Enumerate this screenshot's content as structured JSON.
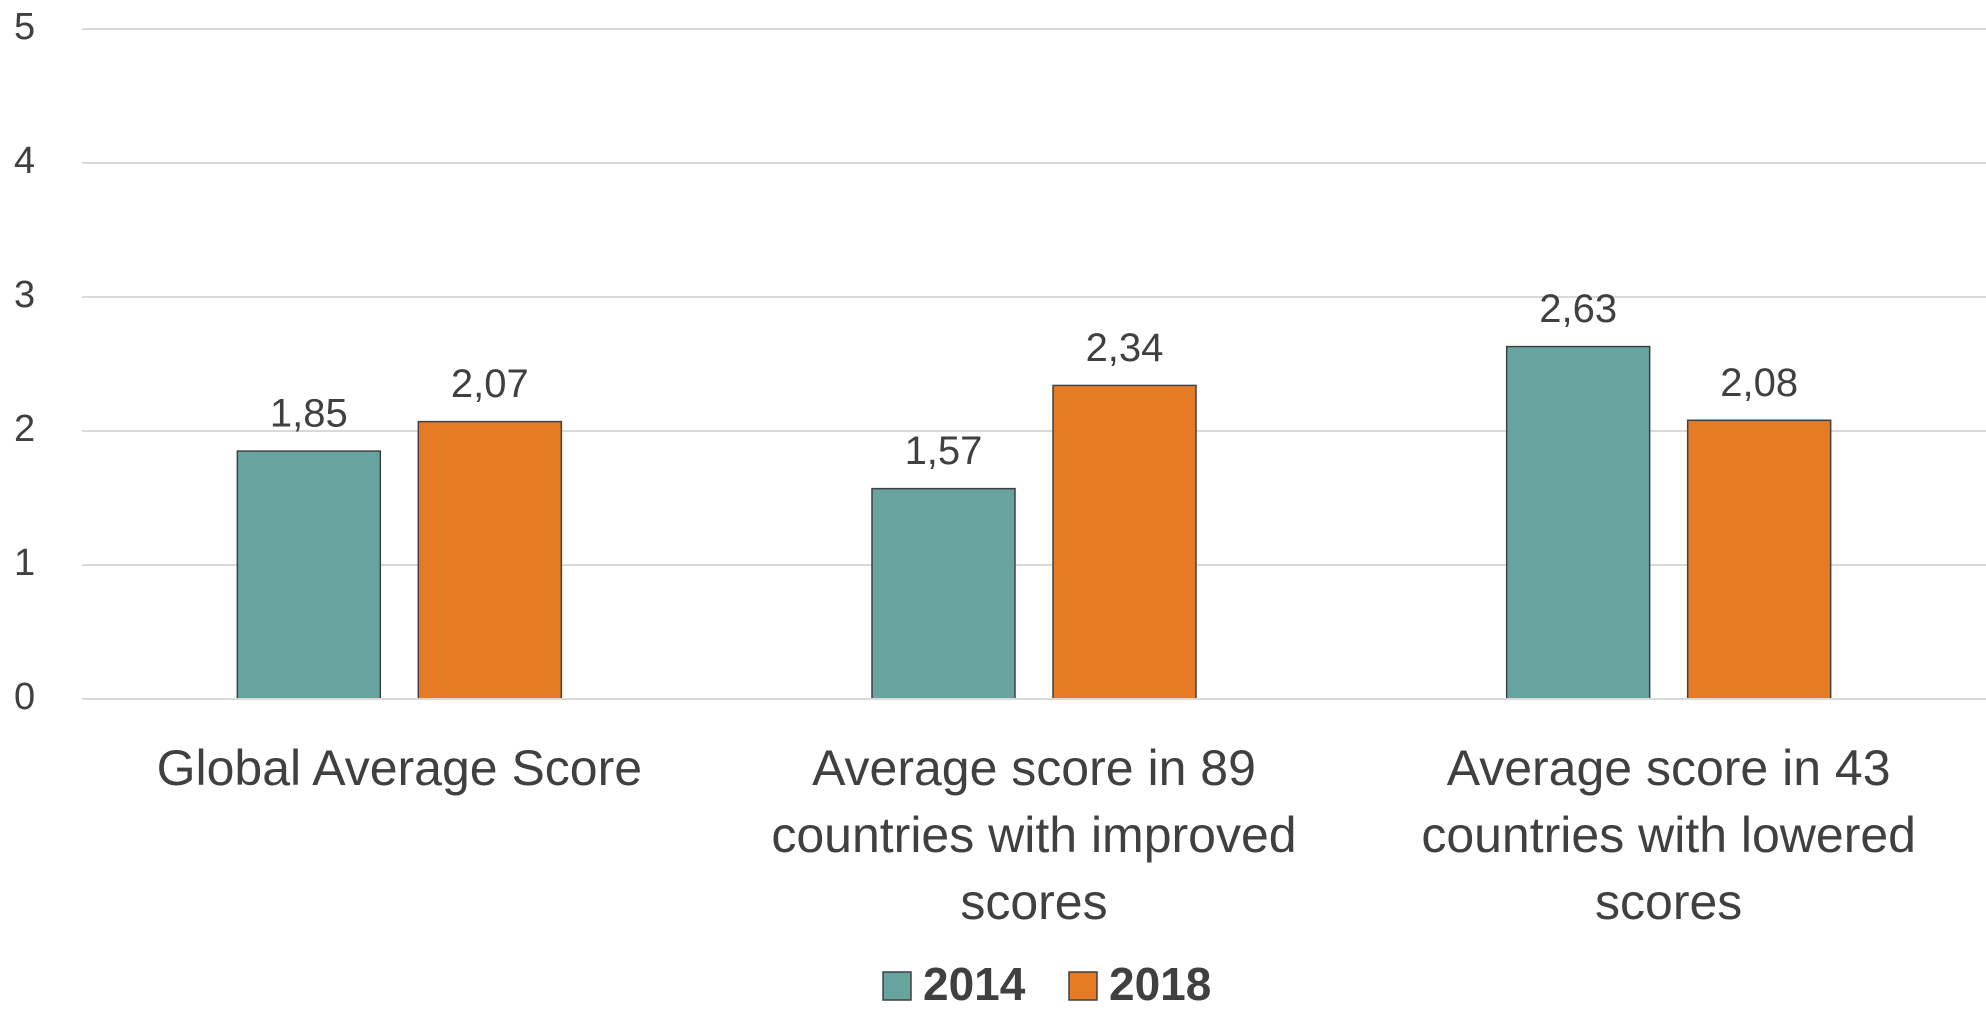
{
  "chart_data": {
    "type": "bar",
    "categories": [
      "Global Average Score",
      "Average score in 89 countries with improved scores",
      "Average score in 43 countries with lowered scores"
    ],
    "series": [
      {
        "name": "2014",
        "color": "#67a39f",
        "values": [
          1.85,
          1.57,
          2.63
        ],
        "value_labels": [
          "1,85",
          "1,57",
          "2,63"
        ]
      },
      {
        "name": "2018",
        "color": "#e57b25",
        "values": [
          2.07,
          2.34,
          2.08
        ],
        "value_labels": [
          "2,07",
          "2,34",
          "2,08"
        ]
      }
    ],
    "ylim": [
      0,
      5
    ],
    "yticks": [
      0,
      1,
      2,
      3,
      4,
      5
    ],
    "grid": true,
    "legend": "bottom"
  }
}
